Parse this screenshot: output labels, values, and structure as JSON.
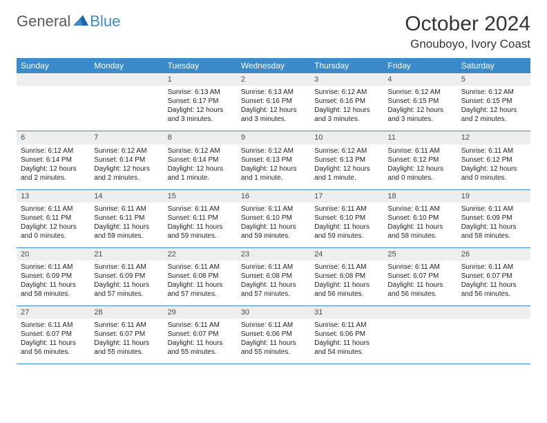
{
  "logo": {
    "text1": "General",
    "text2": "Blue"
  },
  "title": "October 2024",
  "location": "Gnouboyo, Ivory Coast",
  "colors": {
    "header_bg": "#3b8ac9",
    "header_text": "#ffffff",
    "daynum_bg": "#eceeef",
    "border": "#3b8ac9",
    "logo_gray": "#5a5a5a",
    "logo_blue": "#3b8ac9"
  },
  "day_names": [
    "Sunday",
    "Monday",
    "Tuesday",
    "Wednesday",
    "Thursday",
    "Friday",
    "Saturday"
  ],
  "weeks": [
    [
      {
        "n": "",
        "sr": "",
        "ss": "",
        "d1": "",
        "d2": ""
      },
      {
        "n": "",
        "sr": "",
        "ss": "",
        "d1": "",
        "d2": ""
      },
      {
        "n": "1",
        "sr": "Sunrise: 6:13 AM",
        "ss": "Sunset: 6:17 PM",
        "d1": "Daylight: 12 hours",
        "d2": "and 3 minutes."
      },
      {
        "n": "2",
        "sr": "Sunrise: 6:13 AM",
        "ss": "Sunset: 6:16 PM",
        "d1": "Daylight: 12 hours",
        "d2": "and 3 minutes."
      },
      {
        "n": "3",
        "sr": "Sunrise: 6:12 AM",
        "ss": "Sunset: 6:16 PM",
        "d1": "Daylight: 12 hours",
        "d2": "and 3 minutes."
      },
      {
        "n": "4",
        "sr": "Sunrise: 6:12 AM",
        "ss": "Sunset: 6:15 PM",
        "d1": "Daylight: 12 hours",
        "d2": "and 3 minutes."
      },
      {
        "n": "5",
        "sr": "Sunrise: 6:12 AM",
        "ss": "Sunset: 6:15 PM",
        "d1": "Daylight: 12 hours",
        "d2": "and 2 minutes."
      }
    ],
    [
      {
        "n": "6",
        "sr": "Sunrise: 6:12 AM",
        "ss": "Sunset: 6:14 PM",
        "d1": "Daylight: 12 hours",
        "d2": "and 2 minutes."
      },
      {
        "n": "7",
        "sr": "Sunrise: 6:12 AM",
        "ss": "Sunset: 6:14 PM",
        "d1": "Daylight: 12 hours",
        "d2": "and 2 minutes."
      },
      {
        "n": "8",
        "sr": "Sunrise: 6:12 AM",
        "ss": "Sunset: 6:14 PM",
        "d1": "Daylight: 12 hours",
        "d2": "and 1 minute."
      },
      {
        "n": "9",
        "sr": "Sunrise: 6:12 AM",
        "ss": "Sunset: 6:13 PM",
        "d1": "Daylight: 12 hours",
        "d2": "and 1 minute."
      },
      {
        "n": "10",
        "sr": "Sunrise: 6:12 AM",
        "ss": "Sunset: 6:13 PM",
        "d1": "Daylight: 12 hours",
        "d2": "and 1 minute."
      },
      {
        "n": "11",
        "sr": "Sunrise: 6:11 AM",
        "ss": "Sunset: 6:12 PM",
        "d1": "Daylight: 12 hours",
        "d2": "and 0 minutes."
      },
      {
        "n": "12",
        "sr": "Sunrise: 6:11 AM",
        "ss": "Sunset: 6:12 PM",
        "d1": "Daylight: 12 hours",
        "d2": "and 0 minutes."
      }
    ],
    [
      {
        "n": "13",
        "sr": "Sunrise: 6:11 AM",
        "ss": "Sunset: 6:11 PM",
        "d1": "Daylight: 12 hours",
        "d2": "and 0 minutes."
      },
      {
        "n": "14",
        "sr": "Sunrise: 6:11 AM",
        "ss": "Sunset: 6:11 PM",
        "d1": "Daylight: 11 hours",
        "d2": "and 59 minutes."
      },
      {
        "n": "15",
        "sr": "Sunrise: 6:11 AM",
        "ss": "Sunset: 6:11 PM",
        "d1": "Daylight: 11 hours",
        "d2": "and 59 minutes."
      },
      {
        "n": "16",
        "sr": "Sunrise: 6:11 AM",
        "ss": "Sunset: 6:10 PM",
        "d1": "Daylight: 11 hours",
        "d2": "and 59 minutes."
      },
      {
        "n": "17",
        "sr": "Sunrise: 6:11 AM",
        "ss": "Sunset: 6:10 PM",
        "d1": "Daylight: 11 hours",
        "d2": "and 59 minutes."
      },
      {
        "n": "18",
        "sr": "Sunrise: 6:11 AM",
        "ss": "Sunset: 6:10 PM",
        "d1": "Daylight: 11 hours",
        "d2": "and 58 minutes."
      },
      {
        "n": "19",
        "sr": "Sunrise: 6:11 AM",
        "ss": "Sunset: 6:09 PM",
        "d1": "Daylight: 11 hours",
        "d2": "and 58 minutes."
      }
    ],
    [
      {
        "n": "20",
        "sr": "Sunrise: 6:11 AM",
        "ss": "Sunset: 6:09 PM",
        "d1": "Daylight: 11 hours",
        "d2": "and 58 minutes."
      },
      {
        "n": "21",
        "sr": "Sunrise: 6:11 AM",
        "ss": "Sunset: 6:09 PM",
        "d1": "Daylight: 11 hours",
        "d2": "and 57 minutes."
      },
      {
        "n": "22",
        "sr": "Sunrise: 6:11 AM",
        "ss": "Sunset: 6:08 PM",
        "d1": "Daylight: 11 hours",
        "d2": "and 57 minutes."
      },
      {
        "n": "23",
        "sr": "Sunrise: 6:11 AM",
        "ss": "Sunset: 6:08 PM",
        "d1": "Daylight: 11 hours",
        "d2": "and 57 minutes."
      },
      {
        "n": "24",
        "sr": "Sunrise: 6:11 AM",
        "ss": "Sunset: 6:08 PM",
        "d1": "Daylight: 11 hours",
        "d2": "and 56 minutes."
      },
      {
        "n": "25",
        "sr": "Sunrise: 6:11 AM",
        "ss": "Sunset: 6:07 PM",
        "d1": "Daylight: 11 hours",
        "d2": "and 56 minutes."
      },
      {
        "n": "26",
        "sr": "Sunrise: 6:11 AM",
        "ss": "Sunset: 6:07 PM",
        "d1": "Daylight: 11 hours",
        "d2": "and 56 minutes."
      }
    ],
    [
      {
        "n": "27",
        "sr": "Sunrise: 6:11 AM",
        "ss": "Sunset: 6:07 PM",
        "d1": "Daylight: 11 hours",
        "d2": "and 56 minutes."
      },
      {
        "n": "28",
        "sr": "Sunrise: 6:11 AM",
        "ss": "Sunset: 6:07 PM",
        "d1": "Daylight: 11 hours",
        "d2": "and 55 minutes."
      },
      {
        "n": "29",
        "sr": "Sunrise: 6:11 AM",
        "ss": "Sunset: 6:07 PM",
        "d1": "Daylight: 11 hours",
        "d2": "and 55 minutes."
      },
      {
        "n": "30",
        "sr": "Sunrise: 6:11 AM",
        "ss": "Sunset: 6:06 PM",
        "d1": "Daylight: 11 hours",
        "d2": "and 55 minutes."
      },
      {
        "n": "31",
        "sr": "Sunrise: 6:11 AM",
        "ss": "Sunset: 6:06 PM",
        "d1": "Daylight: 11 hours",
        "d2": "and 54 minutes."
      },
      {
        "n": "",
        "sr": "",
        "ss": "",
        "d1": "",
        "d2": ""
      },
      {
        "n": "",
        "sr": "",
        "ss": "",
        "d1": "",
        "d2": ""
      }
    ]
  ]
}
